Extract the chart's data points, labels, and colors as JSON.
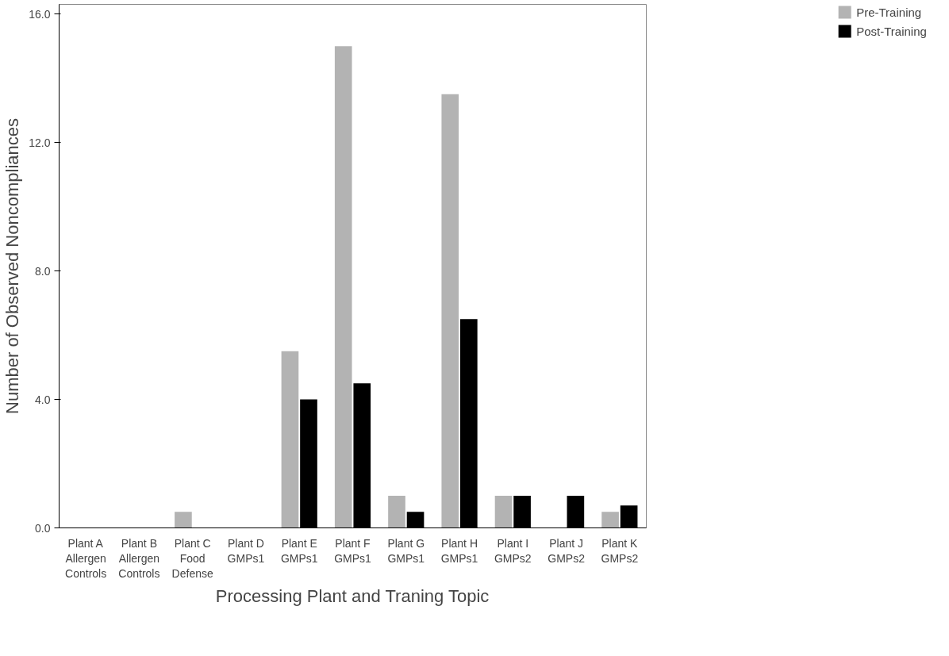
{
  "chart_data": {
    "type": "bar",
    "xlabel": "Processing Plant and Traning Topic",
    "ylabel": "Number of Observed Noncompliances",
    "categories": [
      "Plant A\nAllergen\nControls",
      "Plant B\nAllergen\nControls",
      "Plant C\nFood\nDefense",
      "Plant D\nGMPs1",
      "Plant E\nGMPs1",
      "Plant F\nGMPs1",
      "Plant G\nGMPs1",
      "Plant H\nGMPs1",
      "Plant I\nGMPs2",
      "Plant J\nGMPs2",
      "Plant K\nGMPs2"
    ],
    "series": [
      {
        "name": "Pre-Training",
        "color": "#b3b3b3",
        "values": [
          0,
          0,
          0.5,
          0,
          5.5,
          15.0,
          1.0,
          13.5,
          1.0,
          0,
          0.5
        ]
      },
      {
        "name": "Post-Training",
        "color": "#000000",
        "values": [
          0,
          0,
          0,
          0,
          4.0,
          4.5,
          0.5,
          6.5,
          1.0,
          1.0,
          0.7
        ]
      }
    ],
    "ylim": [
      0,
      16.3
    ],
    "yticks": [
      {
        "value": 0,
        "label": "0.0"
      },
      {
        "value": 4,
        "label": "4.0"
      },
      {
        "value": 8,
        "label": "8.0"
      },
      {
        "value": 12,
        "label": "12.0"
      },
      {
        "value": 16,
        "label": "16.0"
      }
    ],
    "grid": false,
    "legend": "top right"
  }
}
